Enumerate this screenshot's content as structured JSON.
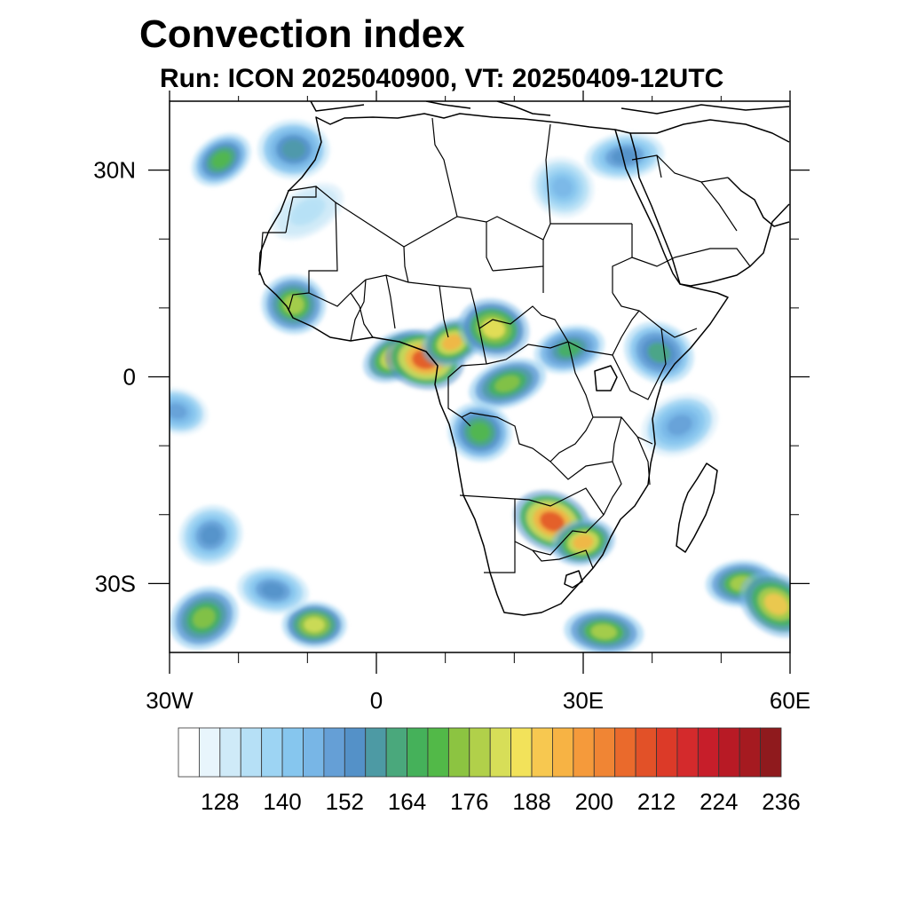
{
  "title": "Convection index",
  "subtitle": "Run: ICON 2025040900,  VT: 20250409-12UTC",
  "map": {
    "region": "Africa",
    "projection": "lat-lon",
    "lon_range": [
      -30,
      60
    ],
    "lat_range": [
      -40,
      40
    ],
    "lon_ticks": [
      {
        "lon": -30,
        "label": "30W"
      },
      {
        "lon": 0,
        "label": "0"
      },
      {
        "lon": 30,
        "label": "30E"
      },
      {
        "lon": 60,
        "label": "60E"
      }
    ],
    "lat_ticks": [
      {
        "lat": 30,
        "label": "30N"
      },
      {
        "lat": 0,
        "label": "0"
      },
      {
        "lat": -30,
        "label": "30S"
      }
    ],
    "minor_lon": [
      -20,
      -10,
      10,
      20,
      40,
      50
    ],
    "minor_lat": [
      20,
      10,
      -10,
      -20
    ],
    "coastline_color": "#000000",
    "border_color": "#000000"
  },
  "colorbar": {
    "labels": [
      "128",
      "140",
      "152",
      "164",
      "176",
      "188",
      "200",
      "212",
      "224",
      "236"
    ],
    "colors": [
      "#ffffff",
      "#e8f5fc",
      "#cfeaf8",
      "#b6e0f6",
      "#9dd4f3",
      "#86c6ee",
      "#78b6e6",
      "#659fd6",
      "#5491c8",
      "#4d9aa4",
      "#4aa87c",
      "#45b15a",
      "#52b948",
      "#8cc441",
      "#b1d04a",
      "#d7de58",
      "#f2e25a",
      "#f7c850",
      "#f7b344",
      "#f59a3b",
      "#f08534",
      "#ea6a2c",
      "#e25128",
      "#dc3a28",
      "#d42a2c",
      "#c71e2a",
      "#b81a25",
      "#a51a20",
      "#8f1a1d"
    ]
  },
  "convection_areas": [
    {
      "lon": -22.5,
      "lat": 31.5,
      "level": 12
    },
    {
      "lon": -12.0,
      "lat": 33.0,
      "level": 9
    },
    {
      "lon": -10.0,
      "lat": 24.0,
      "level": 3
    },
    {
      "lon": -12.0,
      "lat": 10.5,
      "level": 14
    },
    {
      "lon": 3.0,
      "lat": 3.0,
      "level": 18
    },
    {
      "lon": 7.0,
      "lat": 2.5,
      "level": 22
    },
    {
      "lon": 11.0,
      "lat": 5.0,
      "level": 18
    },
    {
      "lon": 17.0,
      "lat": 7.0,
      "level": 16
    },
    {
      "lon": 19.0,
      "lat": -1.0,
      "level": 13
    },
    {
      "lon": 15.0,
      "lat": -8.0,
      "level": 12
    },
    {
      "lon": 28.0,
      "lat": 4.0,
      "level": 11
    },
    {
      "lon": 25.5,
      "lat": -21.0,
      "level": 22
    },
    {
      "lon": 30.0,
      "lat": -24.0,
      "level": 18
    },
    {
      "lon": 41.0,
      "lat": 3.5,
      "level": 10
    },
    {
      "lon": 36.0,
      "lat": 32.0,
      "level": 8
    },
    {
      "lon": 27.0,
      "lat": 27.5,
      "level": 6
    },
    {
      "lon": 53.0,
      "lat": -30.0,
      "level": 14
    },
    {
      "lon": 58.0,
      "lat": -33.0,
      "level": 17
    },
    {
      "lon": -9.0,
      "lat": -36.0,
      "level": 15
    },
    {
      "lon": -25.0,
      "lat": -35.0,
      "level": 13
    },
    {
      "lon": 33.0,
      "lat": -37.0,
      "level": 14
    },
    {
      "lon": -24.0,
      "lat": -23.0,
      "level": 8
    },
    {
      "lon": -15.0,
      "lat": -31.0,
      "level": 8
    },
    {
      "lon": 44.0,
      "lat": -7.0,
      "level": 7
    },
    {
      "lon": -29.0,
      "lat": -5.0,
      "level": 7
    }
  ]
}
